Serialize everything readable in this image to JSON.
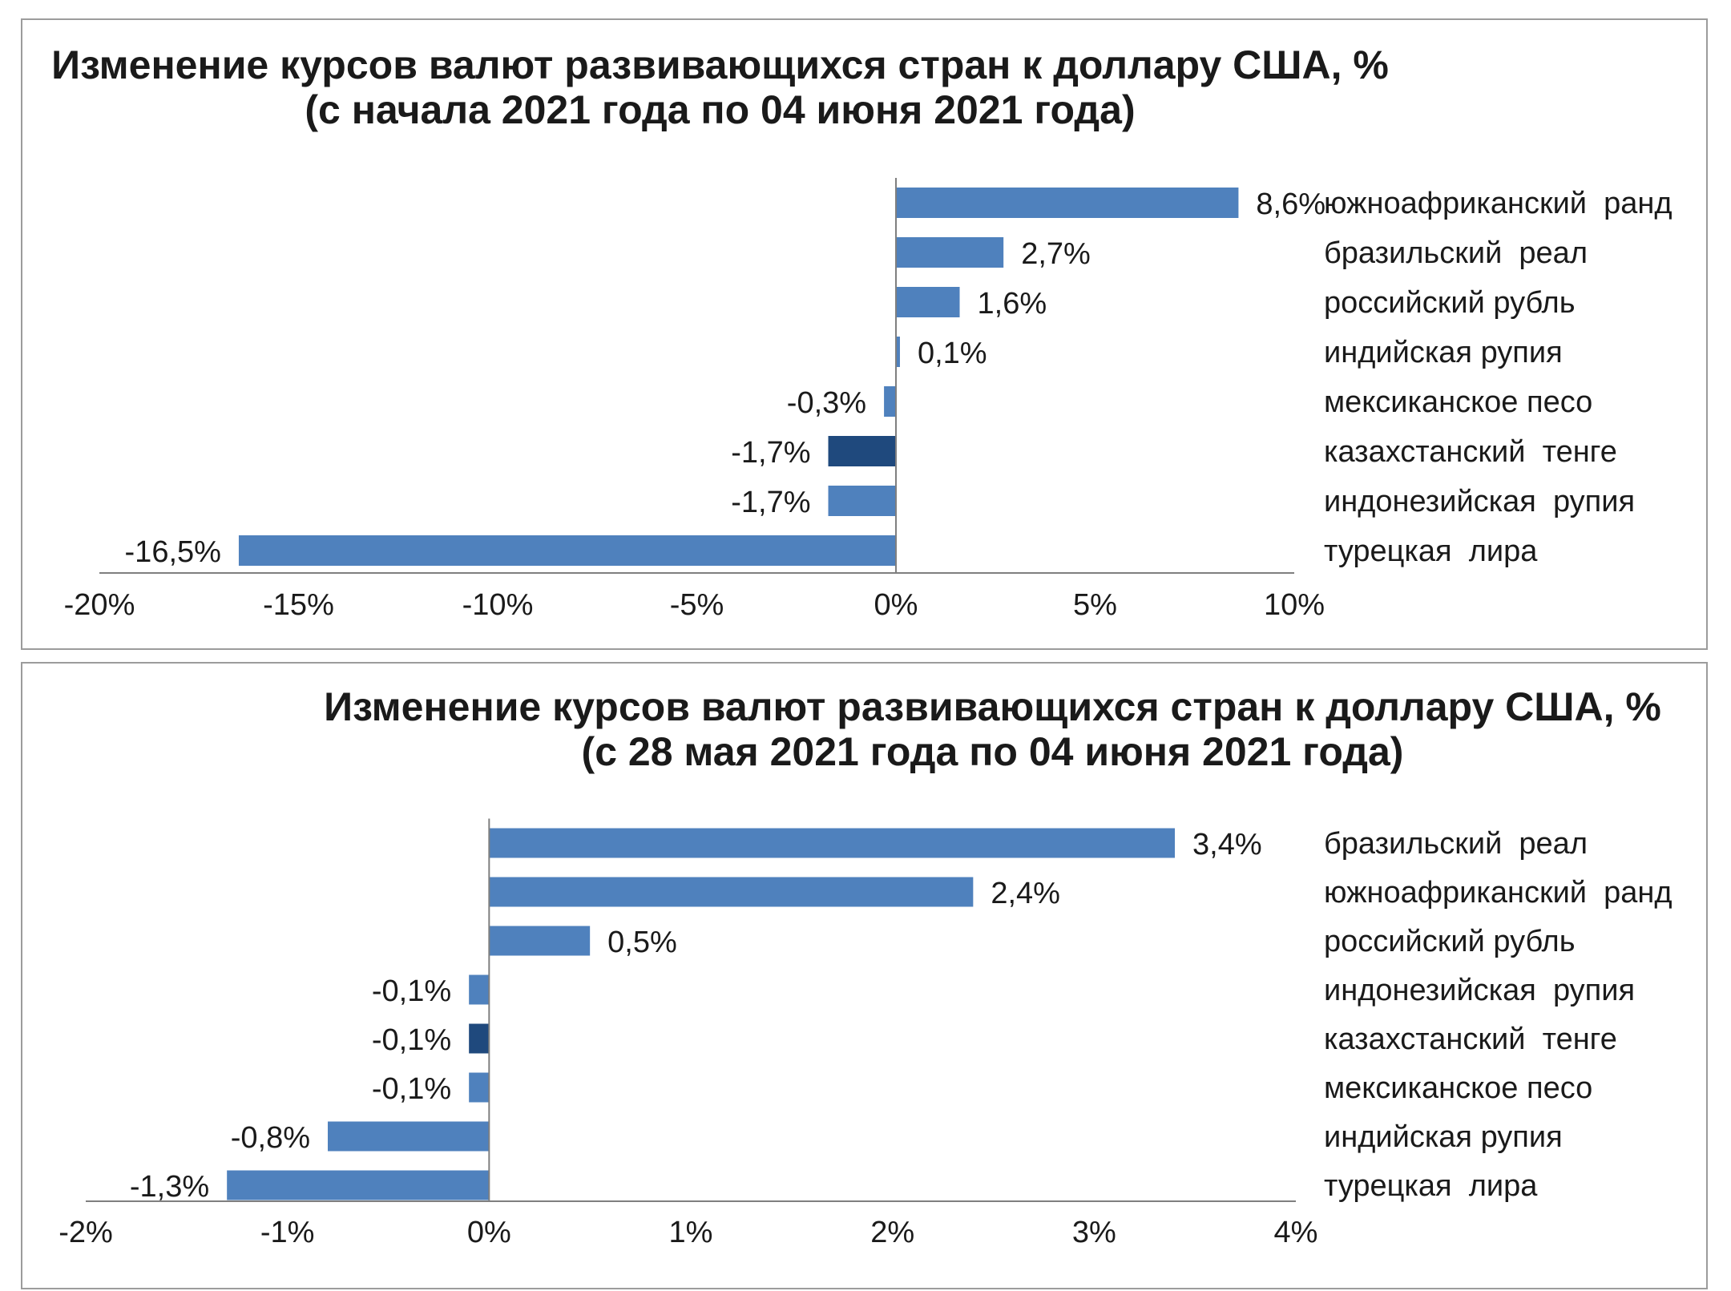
{
  "chart_data": [
    {
      "type": "bar",
      "orientation": "horizontal",
      "title_line1": "Изменение курсов валют развивающихся стран к доллару США, %",
      "title_line2": "(с начала 2021 года по 04 июня 2021 года)",
      "categories": [
        "южноафриканский  ранд",
        "бразильский  реал",
        "российский рубль",
        "индийская рупия",
        "мексиканское песо",
        "казахстанский  тенге",
        "индонезийская  рупия",
        "турецкая  лира"
      ],
      "values": [
        8.6,
        2.7,
        1.6,
        0.1,
        -0.3,
        -1.7,
        -1.7,
        -16.5
      ],
      "value_labels": [
        "8,6%",
        "2,7%",
        "1,6%",
        "0,1%",
        "-0,3%",
        "-1,7%",
        "-1,7%",
        "-16,5%"
      ],
      "highlight_index": 5,
      "xlim": [
        -20,
        10
      ],
      "xticks": [
        -20,
        -15,
        -10,
        -5,
        0,
        5,
        10
      ],
      "xtick_labels": [
        "-20%",
        "-15%",
        "-10%",
        "-5%",
        "0%",
        "5%",
        "10%"
      ],
      "grid": false,
      "legend": "none"
    },
    {
      "type": "bar",
      "orientation": "horizontal",
      "title_line1": "Изменение курсов валют развивающихся стран к доллару США, %",
      "title_line2": "(с 28 мая 2021 года по 04 июня 2021 года)",
      "categories": [
        "бразильский  реал",
        "южноафриканский  ранд",
        "российский рубль",
        "индонезийская  рупия",
        "казахстанский  тенге",
        "мексиканское песо",
        "индийская рупия",
        "турецкая  лира"
      ],
      "values": [
        3.4,
        2.4,
        0.5,
        -0.1,
        -0.1,
        -0.1,
        -0.8,
        -1.3
      ],
      "value_labels": [
        "3,4%",
        "2,4%",
        "0,5%",
        "-0,1%",
        "-0,1%",
        "-0,1%",
        "-0,8%",
        "-1,3%"
      ],
      "highlight_index": 4,
      "xlim": [
        -2,
        4
      ],
      "xticks": [
        -2,
        -1,
        0,
        1,
        2,
        3,
        4
      ],
      "xtick_labels": [
        "-2%",
        "-1%",
        "0%",
        "1%",
        "2%",
        "3%",
        "4%"
      ],
      "grid": false,
      "legend": "none"
    }
  ],
  "colors": {
    "bar": "#4f81bd",
    "bar_highlight": "#1f497d",
    "axis": "#7f7f7f",
    "text": "#1a1a1a"
  }
}
